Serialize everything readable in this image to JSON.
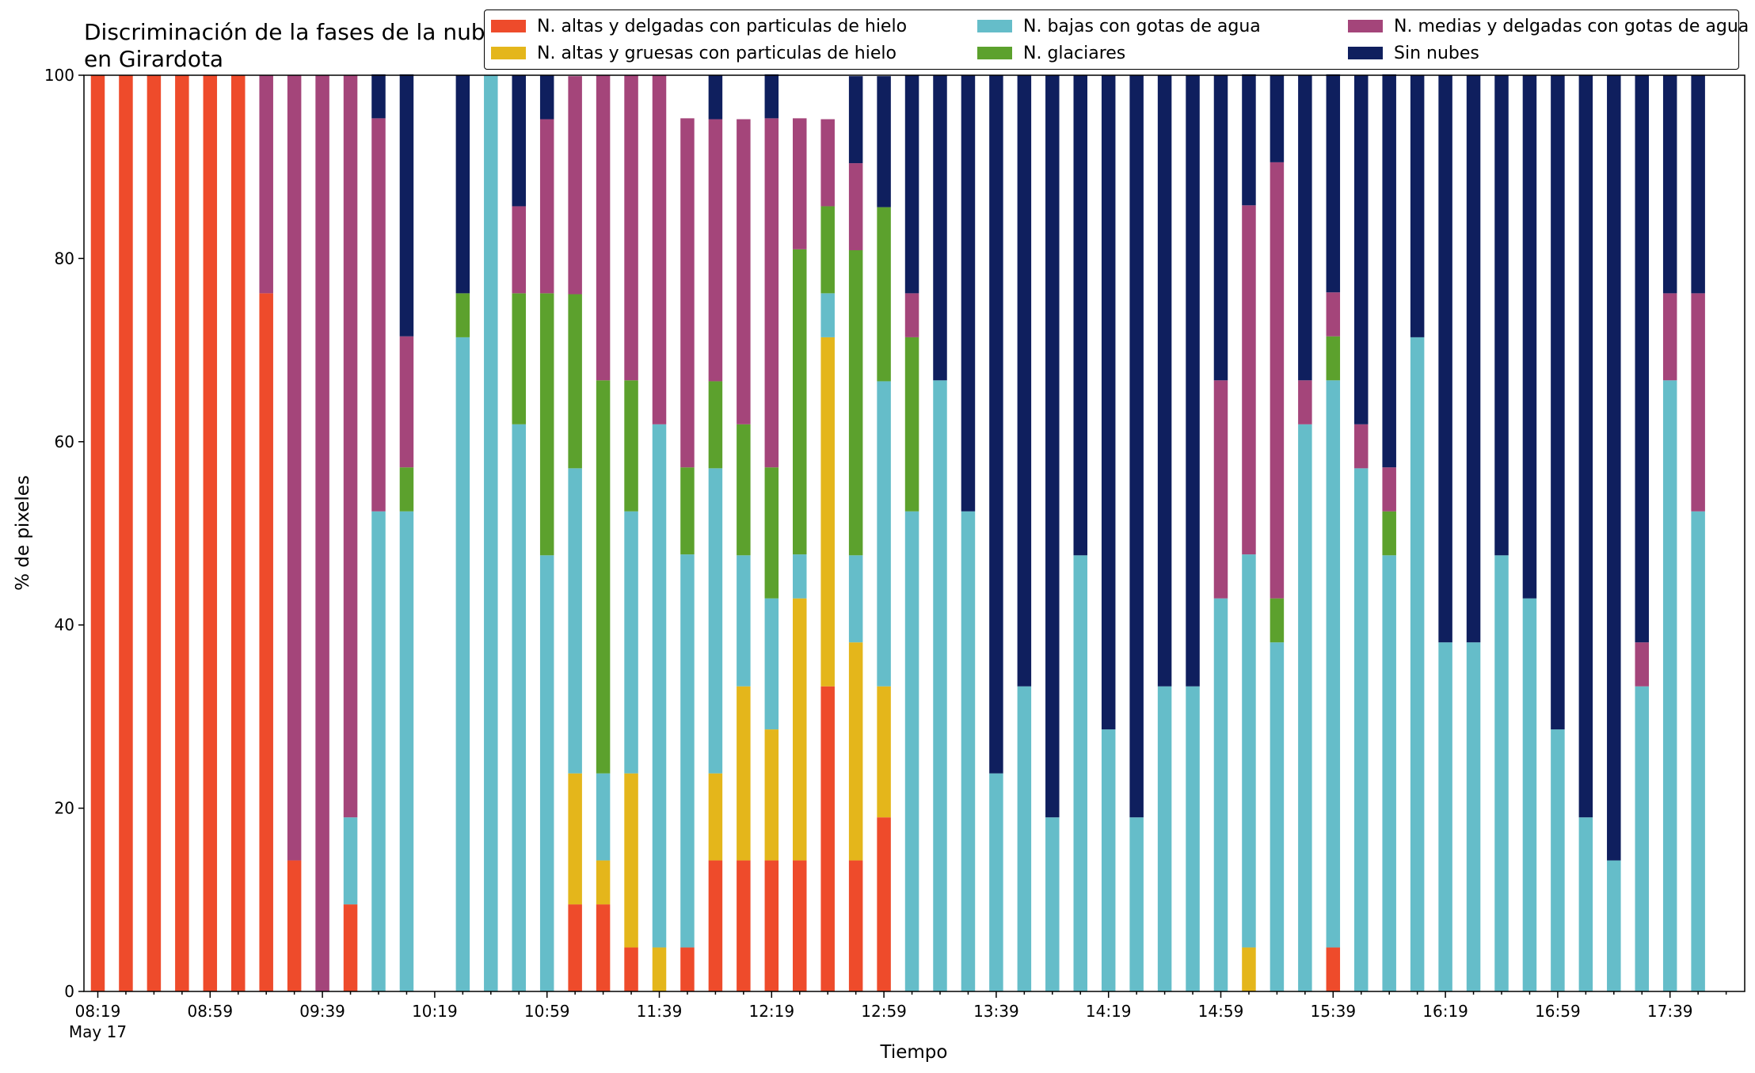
{
  "chart_data": {
    "type": "bar",
    "stacked": true,
    "title": "Discriminación de la fases de la nube en Girardota",
    "xlabel": "Tiempo",
    "ylabel": "% de pixeles",
    "ylim": [
      0,
      100
    ],
    "yticks": [
      "0",
      "20",
      "40",
      "60",
      "80",
      "100"
    ],
    "xtick_labels": [
      "08:19",
      "08:59",
      "09:39",
      "10:19",
      "10:59",
      "11:39",
      "12:19",
      "12:59",
      "13:39",
      "14:19",
      "14:59",
      "15:39",
      "16:19",
      "16:59",
      "17:39"
    ],
    "xtick_sublabel": "May 17",
    "grid": false,
    "legend_position": "top-right",
    "categories": [
      "08:19",
      "08:29",
      "08:39",
      "08:49",
      "08:59",
      "09:09",
      "09:19",
      "09:29",
      "09:39",
      "09:49",
      "09:59",
      "10:09",
      "10:19",
      "10:29",
      "10:39",
      "10:49",
      "10:59",
      "11:09",
      "11:19",
      "11:29",
      "11:39",
      "11:49",
      "11:59",
      "12:09",
      "12:19",
      "12:29",
      "12:39",
      "12:49",
      "12:59",
      "13:09",
      "13:19",
      "13:29",
      "13:39",
      "13:49",
      "13:59",
      "14:09",
      "14:19",
      "14:29",
      "14:39",
      "14:49",
      "14:59",
      "15:09",
      "15:19",
      "15:29",
      "15:39",
      "15:49",
      "15:59",
      "16:09",
      "16:19",
      "16:29",
      "16:39",
      "16:49",
      "16:59",
      "17:09",
      "17:19",
      "17:29",
      "17:39",
      "17:49"
    ],
    "missing": [
      12
    ],
    "series": [
      {
        "name": "N. altas y delgadas con particulas de hielo",
        "color": "#ee4b2b",
        "values": [
          100,
          100,
          100,
          100,
          100,
          100,
          76.2,
          14.3,
          0,
          9.5,
          0,
          0,
          0,
          0,
          0,
          0,
          0,
          9.5,
          9.5,
          4.8,
          0,
          4.8,
          14.3,
          14.3,
          14.3,
          14.3,
          33.3,
          14.3,
          19,
          0,
          0,
          0,
          0,
          0,
          0,
          0,
          0,
          0,
          0,
          0,
          0,
          0,
          0,
          0,
          4.8,
          0,
          0,
          0,
          0,
          0,
          0,
          0,
          0,
          0,
          0,
          0,
          0,
          0
        ]
      },
      {
        "name": "N. altas y gruesas con particulas de hielo",
        "color": "#e4b61b",
        "values": [
          0,
          0,
          0,
          0,
          0,
          0,
          0,
          0,
          0,
          0,
          0,
          0,
          0,
          0,
          0,
          0,
          0,
          14.3,
          4.8,
          19,
          4.8,
          0,
          9.5,
          19,
          14.3,
          28.6,
          38.1,
          23.8,
          14.3,
          0,
          0,
          0,
          0,
          0,
          0,
          0,
          0,
          0,
          0,
          0,
          0,
          4.8,
          0,
          0,
          0,
          0,
          0,
          0,
          0,
          0,
          0,
          0,
          0,
          0,
          0,
          0,
          0,
          0
        ]
      },
      {
        "name": "N. bajas con gotas de agua",
        "color": "#65bdc9",
        "values": [
          0,
          0,
          0,
          0,
          0,
          0,
          0,
          0,
          0,
          9.5,
          52.4,
          52.4,
          0,
          71.4,
          100,
          61.9,
          47.6,
          33.3,
          9.5,
          28.6,
          57.1,
          42.9,
          33.3,
          14.3,
          14.3,
          4.8,
          4.8,
          9.5,
          33.3,
          52.4,
          66.7,
          52.4,
          23.8,
          33.3,
          19,
          47.6,
          28.6,
          19,
          33.3,
          33.3,
          42.9,
          42.9,
          38.1,
          61.9,
          61.9,
          57.1,
          47.6,
          71.4,
          38.1,
          38.1,
          47.6,
          42.9,
          28.6,
          19,
          14.3,
          33.3,
          66.7,
          52.4
        ]
      },
      {
        "name": "N. glaciares",
        "color": "#5ca12d",
        "values": [
          0,
          0,
          0,
          0,
          0,
          0,
          0,
          0,
          0,
          0,
          0,
          4.8,
          0,
          4.8,
          0,
          14.3,
          28.6,
          19,
          42.9,
          14.3,
          0,
          9.5,
          9.5,
          14.3,
          14.3,
          33.3,
          9.5,
          33.3,
          19,
          19,
          0,
          0,
          0,
          0,
          0,
          0,
          0,
          0,
          0,
          0,
          0,
          0,
          4.8,
          0,
          4.8,
          0,
          4.8,
          0,
          0,
          0,
          0,
          0,
          0,
          0,
          0,
          0,
          0,
          0
        ]
      },
      {
        "name": "N. medias y delgadas con gotas de agua",
        "color": "#a4457a",
        "values": [
          0,
          0,
          0,
          0,
          0,
          0,
          23.8,
          85.7,
          100,
          81,
          42.9,
          14.3,
          0,
          0,
          0,
          9.5,
          19,
          23.8,
          33.3,
          33.3,
          38.1,
          38.1,
          28.6,
          33.3,
          38.1,
          14.3,
          9.5,
          9.5,
          0,
          4.8,
          0,
          0,
          0,
          0,
          0,
          0,
          0,
          0,
          0,
          0,
          23.8,
          38.1,
          47.6,
          4.8,
          4.8,
          4.8,
          4.8,
          0,
          0,
          0,
          0,
          0,
          0,
          0,
          0,
          4.8,
          9.5,
          23.8
        ]
      },
      {
        "name": "Sin nubes",
        "color": "#0f1f5e",
        "values": [
          0,
          0,
          0,
          0,
          0,
          0,
          0,
          0,
          0,
          0,
          4.8,
          28.6,
          0,
          23.8,
          0,
          14.3,
          4.8,
          0,
          0,
          0,
          0,
          0,
          4.8,
          0,
          4.8,
          0,
          0,
          9.5,
          14.3,
          23.8,
          33.3,
          47.6,
          76.2,
          66.7,
          81,
          52.4,
          71.4,
          81,
          66.7,
          66.7,
          33.3,
          14.3,
          9.5,
          33.3,
          23.8,
          38.1,
          42.9,
          28.6,
          61.9,
          61.9,
          52.4,
          57.1,
          71.4,
          81,
          85.7,
          61.9,
          23.8,
          23.8
        ]
      }
    ]
  }
}
